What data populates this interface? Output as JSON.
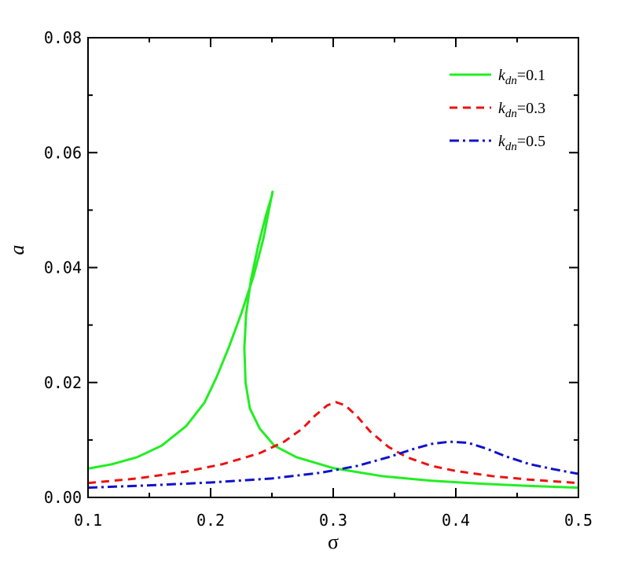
{
  "chart_data": {
    "type": "line",
    "xlabel": "σ",
    "ylabel": "a",
    "xlim": [
      0.1,
      0.5
    ],
    "ylim": [
      0,
      0.08
    ],
    "x_ticks": [
      "0.1",
      "0.2",
      "0.3",
      "0.4",
      "0.5"
    ],
    "y_ticks": [
      "0.00",
      "0.02",
      "0.04",
      "0.06",
      "0.08"
    ],
    "grid": false,
    "legend_position": "top-right",
    "series": [
      {
        "name": "kdn=0.1",
        "legend_k": "k",
        "legend_sub": "dn",
        "legend_val": "=0.1",
        "color": "#22ee22",
        "dash": "solid",
        "points": [
          [
            0.1,
            0.005
          ],
          [
            0.12,
            0.0058
          ],
          [
            0.14,
            0.007
          ],
          [
            0.16,
            0.009
          ],
          [
            0.18,
            0.0124
          ],
          [
            0.195,
            0.0165
          ],
          [
            0.205,
            0.021
          ],
          [
            0.215,
            0.0262
          ],
          [
            0.225,
            0.032
          ],
          [
            0.235,
            0.0385
          ],
          [
            0.243,
            0.045
          ],
          [
            0.248,
            0.0505
          ],
          [
            0.2505,
            0.0532
          ],
          [
            0.25,
            0.0525
          ],
          [
            0.245,
            0.049
          ],
          [
            0.239,
            0.044
          ],
          [
            0.233,
            0.038
          ],
          [
            0.229,
            0.032
          ],
          [
            0.2275,
            0.026
          ],
          [
            0.2285,
            0.02
          ],
          [
            0.232,
            0.0155
          ],
          [
            0.24,
            0.012
          ],
          [
            0.252,
            0.009
          ],
          [
            0.27,
            0.007
          ],
          [
            0.3,
            0.0051
          ],
          [
            0.34,
            0.0037
          ],
          [
            0.38,
            0.0029
          ],
          [
            0.42,
            0.0024
          ],
          [
            0.46,
            0.002
          ],
          [
            0.5,
            0.0017
          ]
        ]
      },
      {
        "name": "kdn=0.3",
        "legend_k": "k",
        "legend_sub": "dn",
        "legend_val": "=0.3",
        "color": "#ee1111",
        "dash": "dashed",
        "points": [
          [
            0.1,
            0.0025
          ],
          [
            0.14,
            0.0033
          ],
          [
            0.18,
            0.0045
          ],
          [
            0.21,
            0.0058
          ],
          [
            0.24,
            0.0077
          ],
          [
            0.26,
            0.0097
          ],
          [
            0.275,
            0.012
          ],
          [
            0.285,
            0.0142
          ],
          [
            0.295,
            0.016
          ],
          [
            0.302,
            0.0166
          ],
          [
            0.31,
            0.016
          ],
          [
            0.32,
            0.014
          ],
          [
            0.33,
            0.0115
          ],
          [
            0.345,
            0.0088
          ],
          [
            0.36,
            0.007
          ],
          [
            0.38,
            0.0055
          ],
          [
            0.4,
            0.0046
          ],
          [
            0.43,
            0.0037
          ],
          [
            0.46,
            0.0031
          ],
          [
            0.5,
            0.0025
          ]
        ]
      },
      {
        "name": "kdn=0.5",
        "legend_k": "k",
        "legend_sub": "dn",
        "legend_val": "=0.5",
        "color": "#1111cc",
        "dash": "dashdot",
        "points": [
          [
            0.1,
            0.0017
          ],
          [
            0.15,
            0.0021
          ],
          [
            0.2,
            0.0026
          ],
          [
            0.25,
            0.0033
          ],
          [
            0.29,
            0.0043
          ],
          [
            0.32,
            0.0055
          ],
          [
            0.345,
            0.007
          ],
          [
            0.365,
            0.0084
          ],
          [
            0.38,
            0.0093
          ],
          [
            0.395,
            0.0097
          ],
          [
            0.41,
            0.0095
          ],
          [
            0.425,
            0.0085
          ],
          [
            0.44,
            0.0072
          ],
          [
            0.46,
            0.0058
          ],
          [
            0.48,
            0.0049
          ],
          [
            0.5,
            0.0041
          ]
        ]
      }
    ]
  }
}
